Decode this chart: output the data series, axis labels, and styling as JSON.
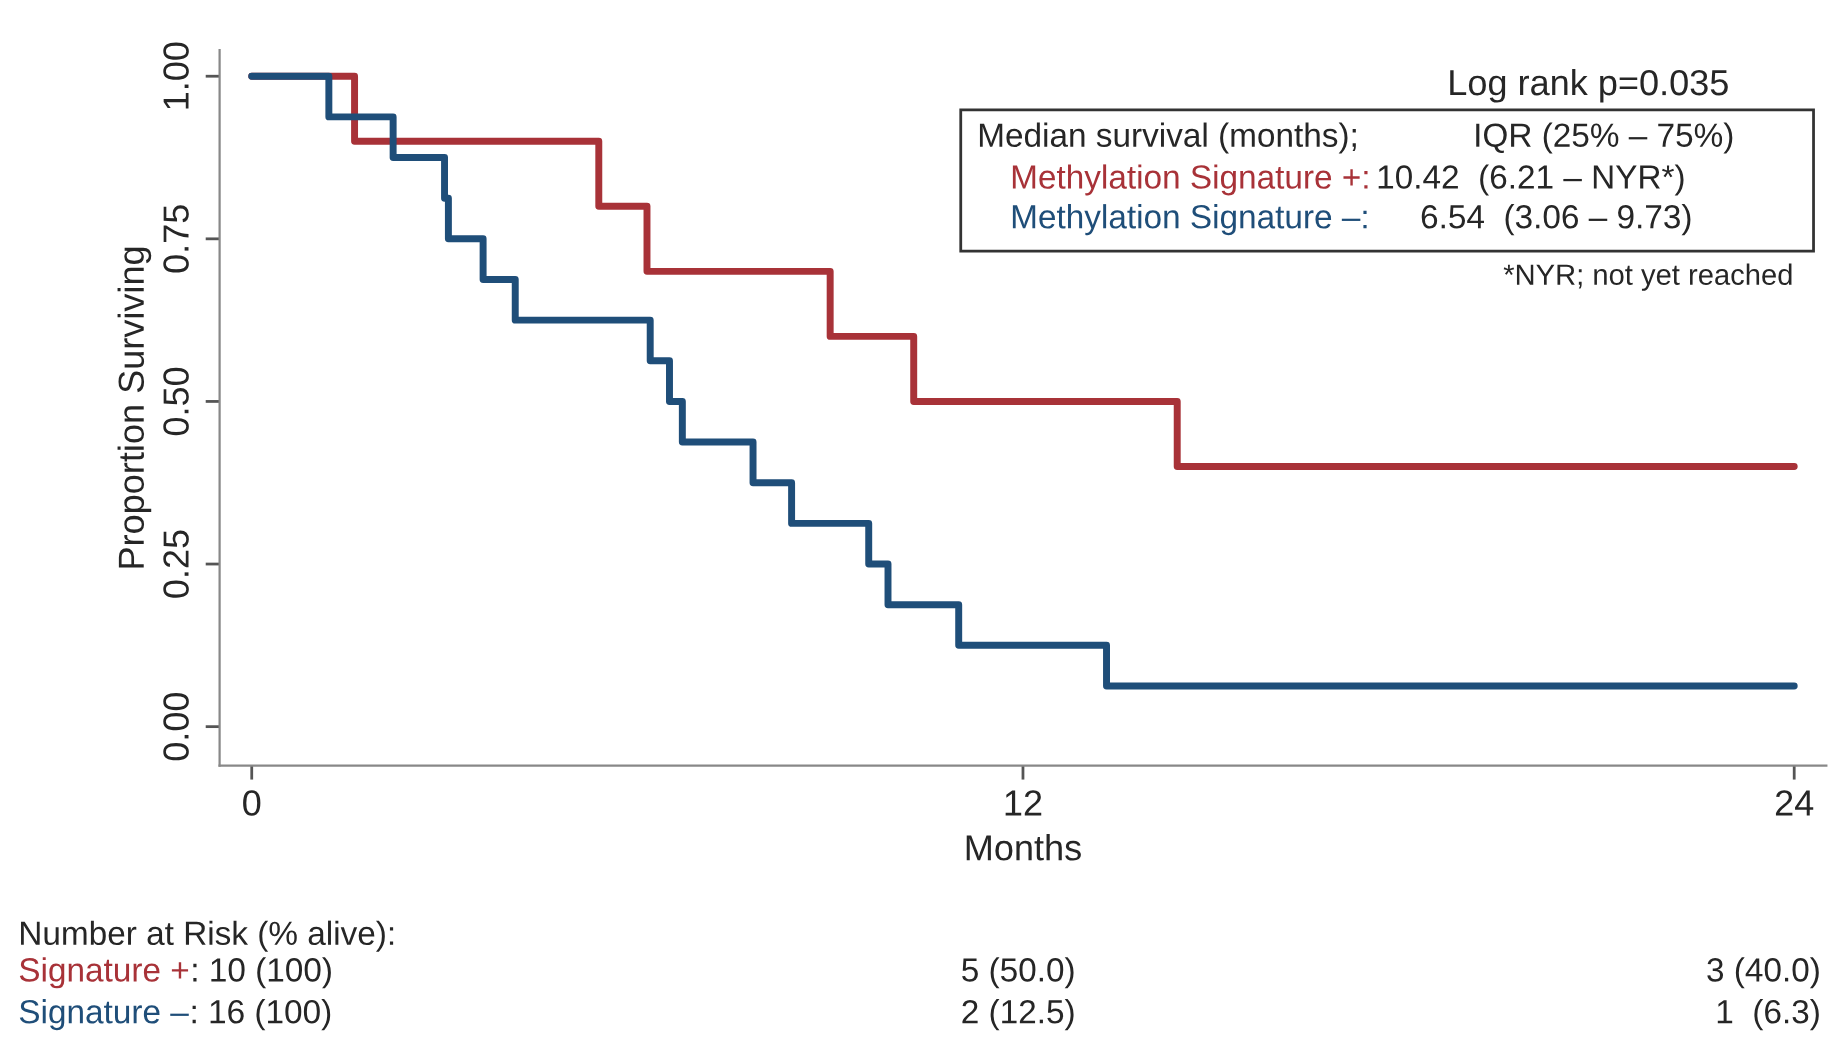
{
  "chart_data": {
    "type": "step",
    "xlabel": "Months",
    "ylabel": "Proportion Surviving",
    "xlim": [
      -0.5,
      24.5
    ],
    "xticks": [
      0,
      12,
      24
    ],
    "ylim": [
      -0.06,
      1.04
    ],
    "yticks": [
      {
        "value": 0,
        "label": "0.00"
      },
      {
        "value": 0.25,
        "label": "0.25"
      },
      {
        "value": 0.5,
        "label": "0.50"
      },
      {
        "value": 0.75,
        "label": "0.75"
      },
      {
        "value": 1,
        "label": "1.00"
      }
    ],
    "grid": false,
    "legend": false,
    "series": [
      {
        "name": "Methylation Signature +:",
        "color": "#a83238",
        "x": [
          0,
          1.6,
          5.4,
          6.15,
          9.0,
          10.3,
          14.4,
          24
        ],
        "values": [
          1.0,
          0.9,
          0.8,
          0.7,
          0.6,
          0.5,
          0.4,
          0.4
        ]
      },
      {
        "name": "Methylation Signature –:",
        "color": "#1f4e79",
        "x": [
          0,
          1.2,
          2.2,
          3.0,
          3.06,
          3.6,
          4.1,
          6.2,
          6.5,
          6.7,
          7.8,
          8.4,
          9.6,
          9.9,
          11.0,
          13.3,
          24
        ],
        "values": [
          1.0,
          0.9375,
          0.875,
          0.8125,
          0.75,
          0.6875,
          0.625,
          0.5625,
          0.5,
          0.4375,
          0.375,
          0.3125,
          0.25,
          0.1875,
          0.125,
          0.0625,
          0.0625
        ]
      }
    ],
    "annotations": [
      "Log rank p=0.035",
      "Median survival (months);",
      "IQR (25% – 75%)",
      "10.42  (6.21 – NYR*)",
      "6.54  (3.06 – 9.73)",
      "*NYR; not yet reached",
      "Number at Risk (% alive):",
      "Signature +",
      ": 10 (100)",
      "5 (50.0)",
      "3 (40.0)",
      "Signature –",
      ": 16 (100)",
      "2 (12.5)",
      "1  (6.3)"
    ]
  }
}
